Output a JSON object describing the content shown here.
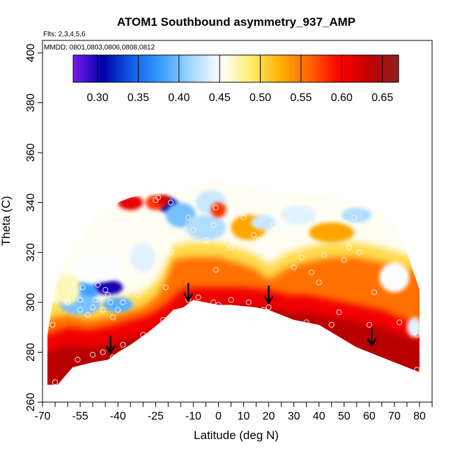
{
  "chart_data": {
    "type": "heatmap",
    "title": "ATOM1 Southbound asymmetry_937_AMP",
    "flights_note": "Flts: 2,3,4,5,6",
    "dates_note": "MMDD: 0801,0803,0806,0808,0812",
    "xlabel": "Latitude (deg N)",
    "ylabel": "Theta (C)",
    "xlim": [
      -70,
      85
    ],
    "ylim": [
      260,
      405
    ],
    "x_ticks": [
      -70,
      -55,
      -40,
      -25,
      -10,
      0,
      10,
      20,
      30,
      40,
      50,
      60,
      70,
      80
    ],
    "x_minor_ticks": [
      -65,
      -60,
      -50,
      -45,
      -35,
      -30,
      -20,
      -15,
      -5,
      5,
      15,
      25,
      35,
      45,
      55,
      65,
      75,
      85
    ],
    "y_ticks": [
      260,
      280,
      300,
      320,
      340,
      360,
      380,
      400
    ],
    "colorbar": {
      "range": [
        0.27,
        0.67
      ],
      "ticks": [
        0.3,
        0.35,
        0.4,
        0.45,
        0.5,
        0.55,
        0.6,
        0.65
      ],
      "colors": [
        "#7a1cf0",
        "#0000a8",
        "#1060e8",
        "#3aa0ff",
        "#a6d8ff",
        "#ffffff",
        "#ffee70",
        "#ffb000",
        "#ff6400",
        "#ff0000",
        "#c00000",
        "#902020"
      ]
    },
    "upper_boundary": [
      [
        -68,
        287
      ],
      [
        -66,
        300
      ],
      [
        -64,
        312
      ],
      [
        -60,
        318
      ],
      [
        -56,
        324
      ],
      [
        -52,
        330
      ],
      [
        -48,
        335
      ],
      [
        -44,
        337
      ],
      [
        -40,
        340
      ],
      [
        -35,
        342
      ],
      [
        -30,
        343
      ],
      [
        -20,
        344
      ],
      [
        -10,
        346
      ],
      [
        -5,
        349
      ],
      [
        0,
        349
      ],
      [
        10,
        347
      ],
      [
        20,
        345
      ],
      [
        30,
        344
      ],
      [
        40,
        343
      ],
      [
        50,
        342
      ],
      [
        55,
        341
      ],
      [
        60,
        338
      ],
      [
        65,
        336
      ],
      [
        70,
        330
      ],
      [
        75,
        320
      ],
      [
        80,
        305
      ]
    ],
    "lower_boundary": [
      [
        -68,
        267
      ],
      [
        -64,
        267
      ],
      [
        -58,
        274
      ],
      [
        -50,
        276
      ],
      [
        -44,
        277
      ],
      [
        -40,
        280
      ],
      [
        -35,
        283
      ],
      [
        -28,
        288
      ],
      [
        -22,
        293
      ],
      [
        -18,
        297
      ],
      [
        -14,
        298
      ],
      [
        -10,
        301
      ],
      [
        -5,
        300
      ],
      [
        0,
        299
      ],
      [
        5,
        299
      ],
      [
        15,
        298
      ],
      [
        20,
        297
      ],
      [
        25,
        295
      ],
      [
        30,
        293
      ],
      [
        40,
        291
      ],
      [
        45,
        288
      ],
      [
        50,
        285
      ],
      [
        55,
        282
      ],
      [
        60,
        280
      ],
      [
        65,
        278
      ],
      [
        70,
        276
      ],
      [
        75,
        274
      ],
      [
        80,
        272
      ]
    ],
    "isolines": {
      "0.55": [
        [
          -68,
          293
        ],
        [
          -60,
          295
        ],
        [
          -52,
          293
        ],
        [
          -45,
          294
        ],
        [
          -38,
          296
        ],
        [
          -30,
          298
        ],
        [
          -24,
          303
        ],
        [
          -20,
          311
        ],
        [
          -18,
          317
        ],
        [
          -12,
          318
        ],
        [
          0,
          318
        ],
        [
          10,
          315
        ],
        [
          15,
          313
        ],
        [
          20,
          309
        ],
        [
          28,
          314
        ],
        [
          35,
          316
        ],
        [
          45,
          318
        ],
        [
          55,
          318
        ],
        [
          65,
          316
        ],
        [
          72,
          314
        ],
        [
          80,
          312
        ]
      ],
      "0.60": [
        [
          -68,
          287
        ],
        [
          -60,
          290
        ],
        [
          -52,
          289
        ],
        [
          -45,
          290
        ],
        [
          -38,
          292
        ],
        [
          -30,
          294
        ],
        [
          -24,
          297
        ],
        [
          -20,
          300
        ],
        [
          -15,
          305
        ],
        [
          -10,
          306
        ],
        [
          0,
          306
        ],
        [
          10,
          306
        ],
        [
          20,
          305
        ],
        [
          28,
          303
        ],
        [
          35,
          303
        ],
        [
          45,
          301
        ],
        [
          55,
          299
        ],
        [
          65,
          297
        ],
        [
          72,
          294
        ],
        [
          80,
          291
        ]
      ]
    },
    "anomalies": [
      {
        "lat": -44,
        "theta": 306,
        "value": 0.3,
        "rlat": 6,
        "rth": 3
      },
      {
        "lat": -54,
        "theta": 304,
        "value": 0.38,
        "rlat": 6,
        "rth": 4
      },
      {
        "lat": -40,
        "theta": 299,
        "value": 0.39,
        "rlat": 6,
        "rth": 3
      },
      {
        "lat": -55,
        "theta": 299,
        "value": 0.4,
        "rlat": 8,
        "rth": 4
      },
      {
        "lat": -20,
        "theta": 339,
        "value": 0.31,
        "rlat": 4,
        "rth": 3
      },
      {
        "lat": -25,
        "theta": 340,
        "value": 0.58,
        "rlat": 4,
        "rth": 3
      },
      {
        "lat": -35,
        "theta": 340,
        "value": 0.61,
        "rlat": 5,
        "rth": 3
      },
      {
        "lat": -22,
        "theta": 341,
        "value": 0.62,
        "rlat": 3,
        "rth": 2
      },
      {
        "lat": -15,
        "theta": 335,
        "value": 0.4,
        "rlat": 6,
        "rth": 5
      },
      {
        "lat": -5,
        "theta": 330,
        "value": 0.42,
        "rlat": 8,
        "rth": 5
      },
      {
        "lat": -3,
        "theta": 340,
        "value": 0.43,
        "rlat": 6,
        "rth": 5
      },
      {
        "lat": 0,
        "theta": 337,
        "value": 0.58,
        "rlat": 3,
        "rth": 3
      },
      {
        "lat": 12,
        "theta": 330,
        "value": 0.53,
        "rlat": 7,
        "rth": 5
      },
      {
        "lat": 18,
        "theta": 332,
        "value": 0.43,
        "rlat": 5,
        "rth": 3
      },
      {
        "lat": 32,
        "theta": 335,
        "value": 0.44,
        "rlat": 7,
        "rth": 4
      },
      {
        "lat": 45,
        "theta": 328,
        "value": 0.53,
        "rlat": 9,
        "rth": 4
      },
      {
        "lat": 55,
        "theta": 335,
        "value": 0.42,
        "rlat": 6,
        "rth": 3
      },
      {
        "lat": -48,
        "theta": 314,
        "value": 0.45,
        "rlat": 10,
        "rth": 6
      },
      {
        "lat": -30,
        "theta": 318,
        "value": 0.44,
        "rlat": 5,
        "rth": 6
      },
      {
        "lat": -60,
        "theta": 305,
        "value": 0.47,
        "rlat": 5,
        "rth": 6
      },
      {
        "lat": 70,
        "theta": 310,
        "value": 0.45,
        "rlat": 6,
        "rth": 6
      },
      {
        "lat": 78,
        "theta": 290,
        "value": 0.44,
        "rlat": 3,
        "rth": 4
      }
    ],
    "sample_points": [
      [
        -66,
        291
      ],
      [
        -60,
        300
      ],
      [
        -58,
        305
      ],
      [
        -55,
        297
      ],
      [
        -55,
        301
      ],
      [
        -54,
        306
      ],
      [
        -52,
        295
      ],
      [
        -50,
        298
      ],
      [
        -49,
        301
      ],
      [
        -48,
        307
      ],
      [
        -46,
        297
      ],
      [
        -45,
        305
      ],
      [
        -44,
        303
      ],
      [
        -43,
        300
      ],
      [
        -42,
        294
      ],
      [
        -40,
        297
      ],
      [
        -38,
        300
      ],
      [
        -56,
        277
      ],
      [
        -50,
        279
      ],
      [
        -46,
        280
      ],
      [
        -42,
        278
      ],
      [
        -38,
        283
      ],
      [
        -30,
        287
      ],
      [
        -22,
        293
      ],
      [
        -21,
        306
      ],
      [
        -19,
        320
      ],
      [
        -25,
        341
      ],
      [
        -24,
        342
      ],
      [
        -19,
        340
      ],
      [
        -16,
        326
      ],
      [
        -12,
        334
      ],
      [
        -12,
        301
      ],
      [
        -8,
        302
      ],
      [
        -10,
        329
      ],
      [
        -2,
        331
      ],
      [
        -2,
        300
      ],
      [
        0,
        299
      ],
      [
        0,
        348
      ],
      [
        -5,
        349
      ],
      [
        -1,
        338
      ],
      [
        5,
        301
      ],
      [
        10,
        334
      ],
      [
        10,
        346
      ],
      [
        12,
        300
      ],
      [
        14,
        327
      ],
      [
        16,
        325
      ],
      [
        18,
        297
      ],
      [
        20,
        298
      ],
      [
        20,
        322
      ],
      [
        22,
        331
      ],
      [
        24,
        339
      ],
      [
        28,
        292
      ],
      [
        30,
        314
      ],
      [
        35,
        292
      ],
      [
        37,
        312
      ],
      [
        40,
        308
      ],
      [
        42,
        319
      ],
      [
        45,
        291
      ],
      [
        48,
        296
      ],
      [
        50,
        317
      ],
      [
        52,
        322
      ],
      [
        54,
        334
      ],
      [
        56,
        320
      ],
      [
        60,
        291
      ],
      [
        62,
        304
      ],
      [
        66,
        311
      ],
      [
        68,
        327
      ],
      [
        72,
        292
      ],
      [
        74,
        311
      ],
      [
        78,
        288
      ],
      [
        79,
        287
      ],
      [
        79,
        273
      ],
      [
        -65,
        268
      ],
      [
        -30,
        326
      ],
      [
        -37,
        318
      ],
      [
        -32,
        303
      ],
      [
        -1,
        313
      ],
      [
        5,
        322
      ],
      [
        33,
        318
      ],
      [
        -5,
        325
      ]
    ],
    "arrows": [
      [
        -43,
        280
      ],
      [
        -12,
        301
      ],
      [
        20,
        300
      ],
      [
        61,
        283
      ]
    ]
  }
}
